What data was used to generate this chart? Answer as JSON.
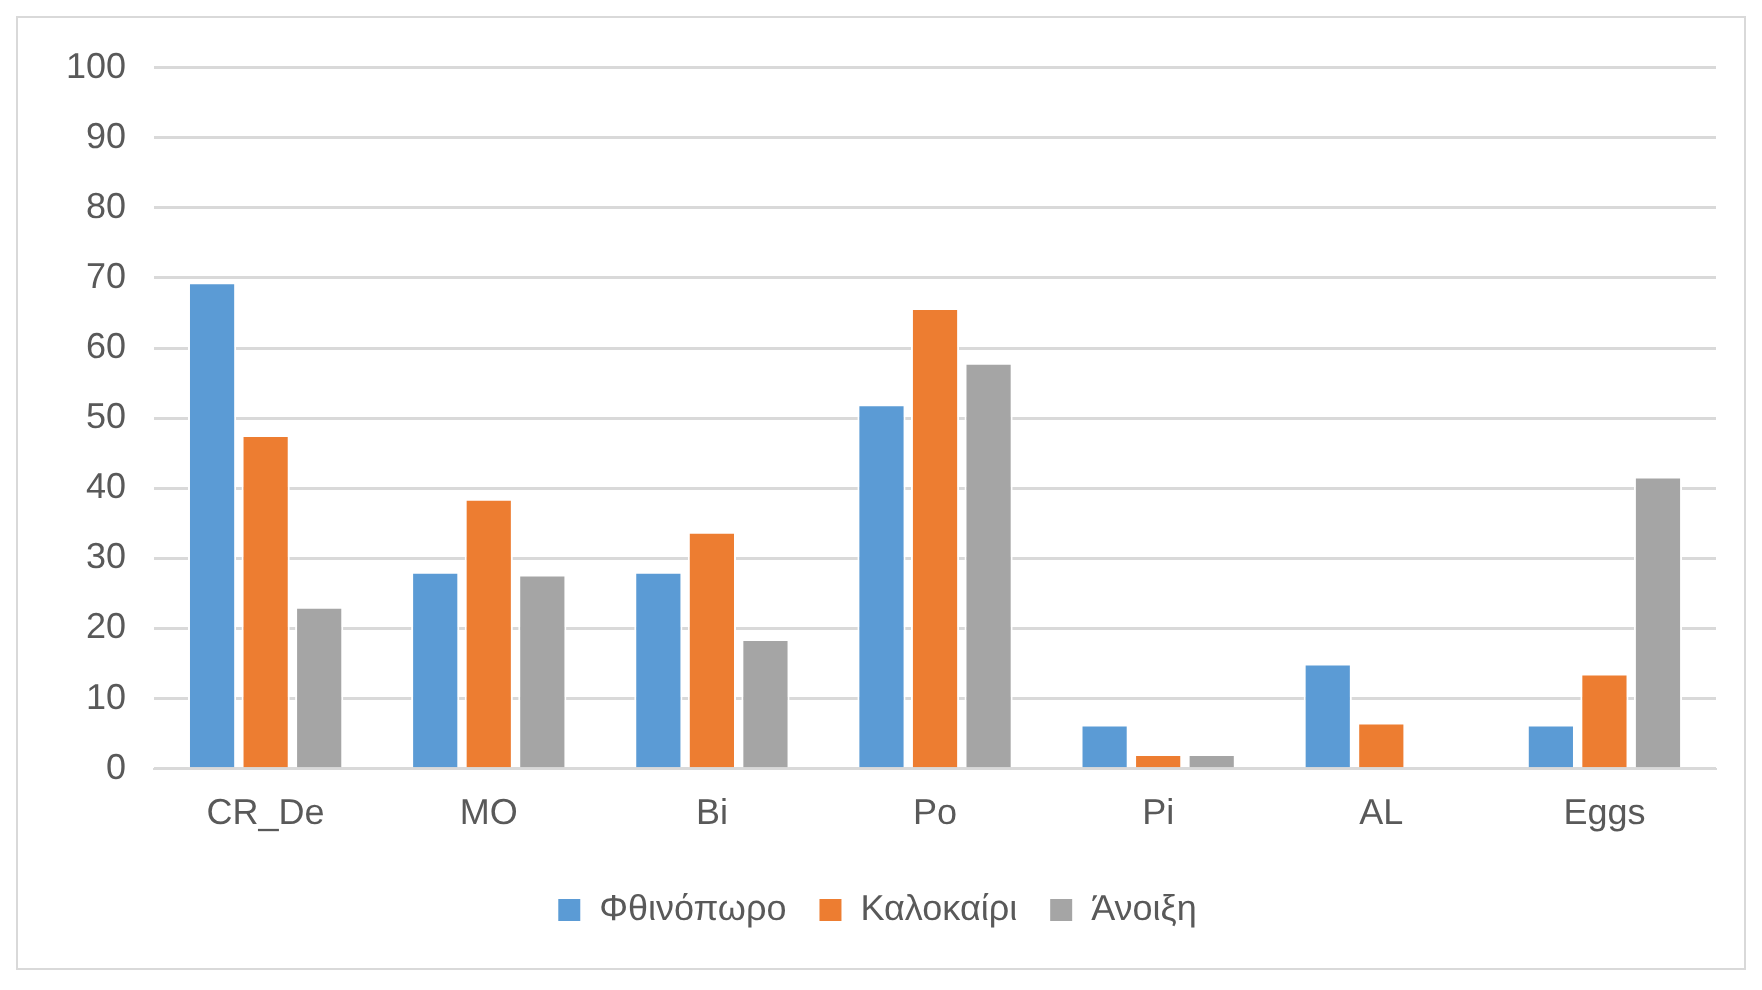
{
  "chart_data": {
    "type": "bar",
    "categories": [
      "CR_De",
      "MO",
      "Bi",
      "Po",
      "Pi",
      "AL",
      "Eggs"
    ],
    "series": [
      {
        "name": "Φθινόπωρο",
        "color": "#5b9bd5",
        "values": [
          69.4,
          28.1,
          28.1,
          52,
          6.3,
          15,
          6.3
        ]
      },
      {
        "name": "Καλοκαίρι",
        "color": "#ed7d31",
        "values": [
          47.6,
          38.5,
          33.8,
          65.7,
          2.1,
          6.6,
          13.6
        ]
      },
      {
        "name": "Άνοιξη",
        "color": "#a5a5a5",
        "values": [
          23.1,
          27.7,
          18.5,
          57.9,
          2.1,
          0,
          41.7
        ]
      }
    ],
    "ylim": [
      0,
      100
    ],
    "yticks": [
      0,
      10,
      20,
      30,
      40,
      50,
      60,
      70,
      80,
      90,
      100
    ],
    "grid": "y",
    "legend": "bottom"
  }
}
